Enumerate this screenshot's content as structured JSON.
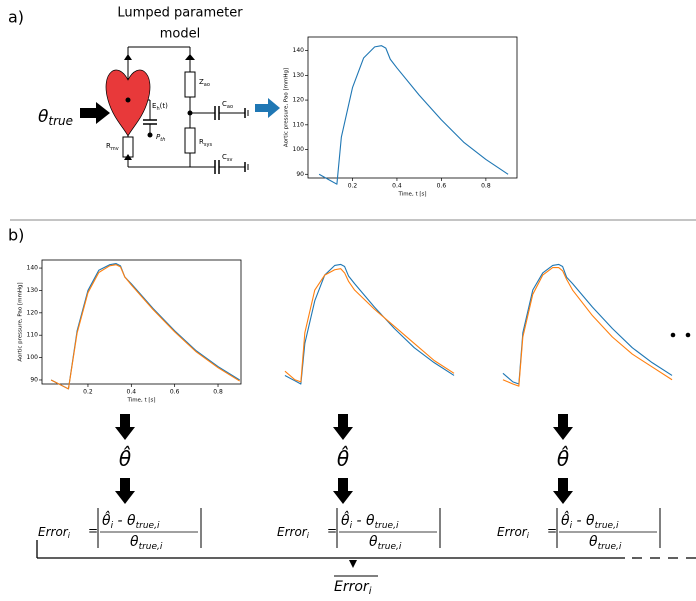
{
  "labels": {
    "panel_a": "a)",
    "panel_b": "b)",
    "title_lines": [
      "Lumped parameter",
      "model"
    ],
    "theta": "θ",
    "theta_sub": "true",
    "circuit": {
      "zao": "Z",
      "zao_sub": "ao",
      "cao": "C",
      "cao_sub": "ao",
      "rsys": "R",
      "rsys_sub": "sys",
      "csv": "C",
      "csv_sub": "sv",
      "rmv": "R",
      "rmv_sub": "mv",
      "eh": "E",
      "eh_sub": "h",
      "eh_arg": "(t)",
      "pth": "P",
      "pth_sub": "th"
    },
    "estimates": [
      "θ̂",
      "θ̂",
      "θ̂"
    ],
    "errors": [
      {
        "lhs": "Error",
        "lhs_sub": "i",
        "eq": "=",
        "num": "θ̂",
        "num_sub": "i",
        "minus": " - θ",
        "num_sub2": "true,i",
        "den": "θ",
        "den_sub": "true,i"
      },
      {
        "lhs": "Error",
        "lhs_sub": "i",
        "eq": "=",
        "num": "θ̂",
        "num_sub": "i",
        "minus": " - θ",
        "num_sub2": "true,i",
        "den": "θ",
        "den_sub": "true,i"
      },
      {
        "lhs": "Error",
        "lhs_sub": "i",
        "eq": "=",
        "num": "θ̂",
        "num_sub": "i",
        "minus": " - θ",
        "num_sub2": "true,i",
        "den": "θ",
        "den_sub": "true,i"
      }
    ],
    "mean_error": "Error",
    "mean_error_sub": "i"
  },
  "chart_data": [
    {
      "type": "line",
      "frame": true,
      "x_label": "Time, t [s]",
      "y_label": "Aortic pressure, Pao [mmHg]",
      "x": [
        0.05,
        0.1,
        0.13,
        0.15,
        0.2,
        0.25,
        0.3,
        0.33,
        0.35,
        0.37,
        0.4,
        0.5,
        0.6,
        0.7,
        0.8,
        0.9
      ],
      "series": [
        {
          "color": "#1f77b4",
          "values": [
            90,
            87.5,
            86,
            105,
            125,
            137,
            141.5,
            142,
            141,
            136.5,
            133,
            122,
            112,
            103,
            96,
            90
          ]
        }
      ],
      "xlim": [
        0,
        0.94
      ],
      "ylim": [
        88.5,
        145.5
      ],
      "xticks": [
        0.2,
        0.4,
        0.6,
        0.8
      ],
      "yticks": [
        90,
        100,
        110,
        120,
        130,
        140
      ]
    },
    {
      "type": "line",
      "frame": true,
      "x_label": "Time, t [s]",
      "y_label": "Aortic pressure, Pao [mmHg]",
      "x": [
        0.03,
        0.1,
        0.11,
        0.15,
        0.2,
        0.25,
        0.3,
        0.33,
        0.35,
        0.37,
        0.4,
        0.5,
        0.6,
        0.7,
        0.8,
        0.9
      ],
      "series": [
        {
          "color": "#1f77b4",
          "values": [
            90,
            86.5,
            86,
            112,
            130,
            139,
            141.5,
            142,
            141,
            136,
            133,
            122,
            112,
            103,
            96,
            90
          ]
        },
        {
          "color": "#ff7f0e",
          "values": [
            90,
            86.5,
            86,
            111,
            129,
            138,
            141,
            141.5,
            140.5,
            136,
            132.5,
            121.5,
            111.5,
            102.5,
            95.5,
            89.5
          ]
        }
      ],
      "xlim": [
        -0.012,
        0.906
      ],
      "ylim": [
        88.2,
        143.6
      ],
      "xticks": [
        0.2,
        0.4,
        0.6,
        0.8
      ],
      "yticks": [
        90,
        100,
        110,
        120,
        130,
        140
      ]
    },
    {
      "type": "line",
      "frame": false,
      "x": [
        0.05,
        0.1,
        0.13,
        0.15,
        0.2,
        0.25,
        0.3,
        0.33,
        0.35,
        0.37,
        0.4,
        0.5,
        0.6,
        0.7,
        0.8,
        0.9
      ],
      "series": [
        {
          "color": "#1f77b4",
          "values": [
            90,
            87.5,
            86,
            105,
            125,
            137,
            141.5,
            142,
            141,
            136.5,
            133,
            122,
            112,
            103,
            96,
            90
          ]
        },
        {
          "color": "#ff7f0e",
          "values": [
            92,
            88,
            87,
            110,
            130,
            137,
            139.5,
            140,
            138,
            134,
            130,
            121,
            113,
            105,
            97,
            91
          ]
        }
      ],
      "xlim": [
        0,
        0.94
      ],
      "ylim": [
        86,
        145
      ]
    },
    {
      "type": "line",
      "frame": false,
      "x": [
        0.05,
        0.1,
        0.13,
        0.15,
        0.2,
        0.25,
        0.3,
        0.33,
        0.35,
        0.37,
        0.4,
        0.5,
        0.6,
        0.7,
        0.8,
        0.9
      ],
      "series": [
        {
          "color": "#1f77b4",
          "values": [
            91,
            87,
            86,
            110,
            130,
            138,
            141.5,
            142,
            141,
            136,
            133,
            122,
            112,
            103,
            96,
            90
          ]
        },
        {
          "color": "#ff7f0e",
          "values": [
            88,
            86,
            85,
            108,
            128,
            137,
            140.5,
            140.5,
            139,
            135,
            130,
            118,
            108,
            100,
            94,
            88
          ]
        }
      ],
      "xlim": [
        0,
        0.94
      ],
      "ylim": [
        86,
        145
      ]
    }
  ]
}
